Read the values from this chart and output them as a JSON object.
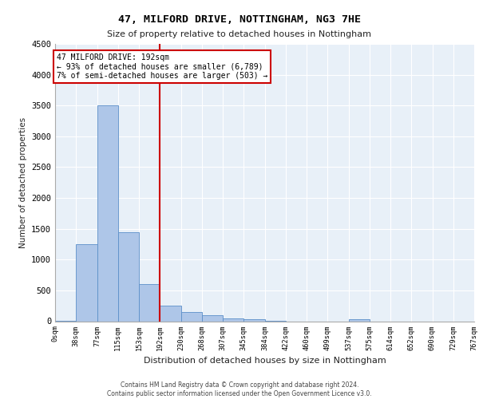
{
  "title1": "47, MILFORD DRIVE, NOTTINGHAM, NG3 7HE",
  "title2": "Size of property relative to detached houses in Nottingham",
  "xlabel": "Distribution of detached houses by size in Nottingham",
  "ylabel": "Number of detached properties",
  "bin_labels": [
    "0sqm",
    "38sqm",
    "77sqm",
    "115sqm",
    "153sqm",
    "192sqm",
    "230sqm",
    "268sqm",
    "307sqm",
    "345sqm",
    "384sqm",
    "422sqm",
    "460sqm",
    "499sqm",
    "537sqm",
    "575sqm",
    "614sqm",
    "652sqm",
    "690sqm",
    "729sqm",
    "767sqm"
  ],
  "bar_values": [
    5,
    1250,
    3500,
    1450,
    600,
    250,
    150,
    100,
    50,
    30,
    5,
    0,
    0,
    0,
    30,
    0,
    0,
    0,
    0,
    0
  ],
  "bar_color": "#aec6e8",
  "bar_edge_color": "#5b8fc9",
  "vline_x_index": 5,
  "vline_color": "#cc0000",
  "annotation_line1": "47 MILFORD DRIVE: 192sqm",
  "annotation_line2": "← 93% of detached houses are smaller (6,789)",
  "annotation_line3": "7% of semi-detached houses are larger (503) →",
  "annotation_box_color": "#cc0000",
  "ylim": [
    0,
    4500
  ],
  "yticks": [
    0,
    500,
    1000,
    1500,
    2000,
    2500,
    3000,
    3500,
    4000,
    4500
  ],
  "background_color": "#e8f0f8",
  "footer_line1": "Contains HM Land Registry data © Crown copyright and database right 2024.",
  "footer_line2": "Contains public sector information licensed under the Open Government Licence v3.0."
}
